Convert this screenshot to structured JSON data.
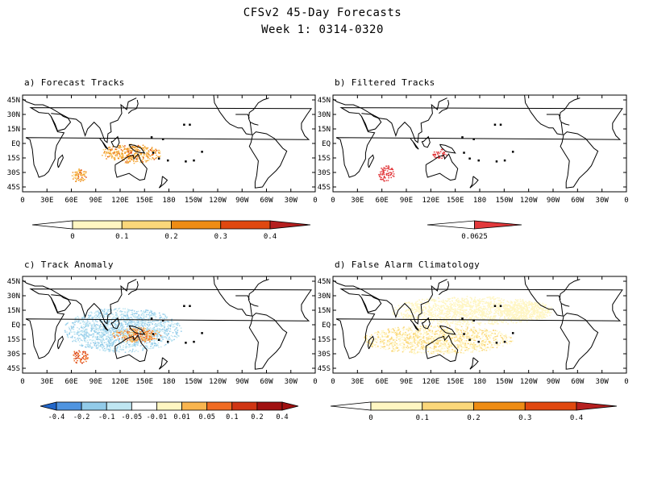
{
  "title": "CFSv2 45-Day Forecasts",
  "subtitle": "Week 1: 0314-0320",
  "colors": {
    "anomaly_negative": [
      "#2166c9",
      "#4f94e0",
      "#92cbe9",
      "#bfe6f2",
      "#e3f4f8"
    ],
    "anomaly_positive": [
      "#fff6c2",
      "#fde08f",
      "#f9b54e",
      "#f06b22",
      "#d03513",
      "#a01010"
    ],
    "sequential": [
      "#fff6c2",
      "#fbd77a",
      "#f5ae40",
      "#ee8c14",
      "#e0480f",
      "#b51f1f"
    ],
    "filtered": "#e2393c",
    "land_outline": "#000000"
  },
  "chart_data": [
    {
      "type": "heatmap",
      "title": "a) Forecast Tracks",
      "x_ticks": [
        "0",
        "30E",
        "60E",
        "90E",
        "120E",
        "150E",
        "180",
        "150W",
        "120W",
        "90W",
        "60W",
        "30W",
        "0"
      ],
      "y_ticks": [
        "45N",
        "30N",
        "15N",
        "EQ",
        "15S",
        "30S",
        "45S"
      ],
      "colorbar": {
        "labels": [
          "0",
          "0.1",
          "0.2",
          "0.3",
          "0.4"
        ],
        "palette": "sequential"
      },
      "regions": [
        {
          "name": "south-indian-ocean",
          "lon": [
            60,
            80
          ],
          "lat": [
            -40,
            -25
          ],
          "value": 0.3
        },
        {
          "name": "maritime-continent",
          "lon": [
            95,
            170
          ],
          "lat": [
            -20,
            0
          ],
          "value": 0.3
        },
        {
          "name": "north-australia",
          "lon": [
            125,
            140
          ],
          "lat": [
            -15,
            -8
          ],
          "value": 0.35
        }
      ]
    },
    {
      "type": "heatmap",
      "title": "b) Filtered Tracks",
      "x_ticks": [
        "0",
        "30E",
        "60E",
        "90E",
        "120E",
        "150E",
        "180",
        "150W",
        "120W",
        "90W",
        "60W",
        "30W",
        "0"
      ],
      "y_ticks": [
        "45N",
        "30N",
        "15N",
        "EQ",
        "15S",
        "30S",
        "45S"
      ],
      "colorbar": {
        "labels": [
          "0.0625"
        ],
        "palette": "filtered"
      },
      "regions": [
        {
          "name": "south-indian-ocean",
          "lon": [
            55,
            75
          ],
          "lat": [
            -40,
            -22
          ],
          "value": 0.0625
        },
        {
          "name": "timor-sea",
          "lon": [
            120,
            140
          ],
          "lat": [
            -15,
            -5
          ],
          "value": 0.0625
        }
      ]
    },
    {
      "type": "heatmap",
      "title": "c) Track Anomaly",
      "x_ticks": [
        "0",
        "30E",
        "60E",
        "90E",
        "120E",
        "150E",
        "180",
        "150W",
        "120W",
        "90W",
        "60W",
        "30W",
        "0"
      ],
      "y_ticks": [
        "45N",
        "30N",
        "15N",
        "EQ",
        "15S",
        "30S",
        "45S"
      ],
      "colorbar": {
        "labels": [
          "-0.4",
          "-0.2",
          "-0.1",
          "-0.05",
          "-0.01",
          "0.01",
          "0.05",
          "0.1",
          "0.2",
          "0.4"
        ],
        "palette": "anomaly"
      },
      "regions": [
        {
          "name": "indian-ocean-negative",
          "lon": [
            50,
            195
          ],
          "lat": [
            -28,
            18
          ],
          "value": -0.05
        },
        {
          "name": "south-indian-ocean",
          "lon": [
            60,
            80
          ],
          "lat": [
            -40,
            -25
          ],
          "value": 0.2
        },
        {
          "name": "maritime-continent",
          "lon": [
            110,
            170
          ],
          "lat": [
            -18,
            -2
          ],
          "value": 0.1
        }
      ]
    },
    {
      "type": "heatmap",
      "title": "d) False Alarm Climatology",
      "x_ticks": [
        "0",
        "30E",
        "60E",
        "90E",
        "120E",
        "150E",
        "180",
        "150W",
        "120W",
        "90W",
        "60W",
        "30W",
        "0"
      ],
      "y_ticks": [
        "45N",
        "30N",
        "15N",
        "EQ",
        "15S",
        "30S",
        "45S"
      ],
      "colorbar": {
        "labels": [
          "0",
          "0.1",
          "0.2",
          "0.3",
          "0.4"
        ],
        "palette": "sequential"
      },
      "regions": [
        {
          "name": "south-tropical-band",
          "lon": [
            35,
            220
          ],
          "lat": [
            -30,
            0
          ],
          "value": 0.1
        },
        {
          "name": "north-tropical-band",
          "lon": [
            70,
            270
          ],
          "lat": [
            0,
            30
          ],
          "value": 0.05
        },
        {
          "name": "east-pacific",
          "lon": [
            200,
            270
          ],
          "lat": [
            5,
            25
          ],
          "value": 0.05
        }
      ]
    }
  ]
}
